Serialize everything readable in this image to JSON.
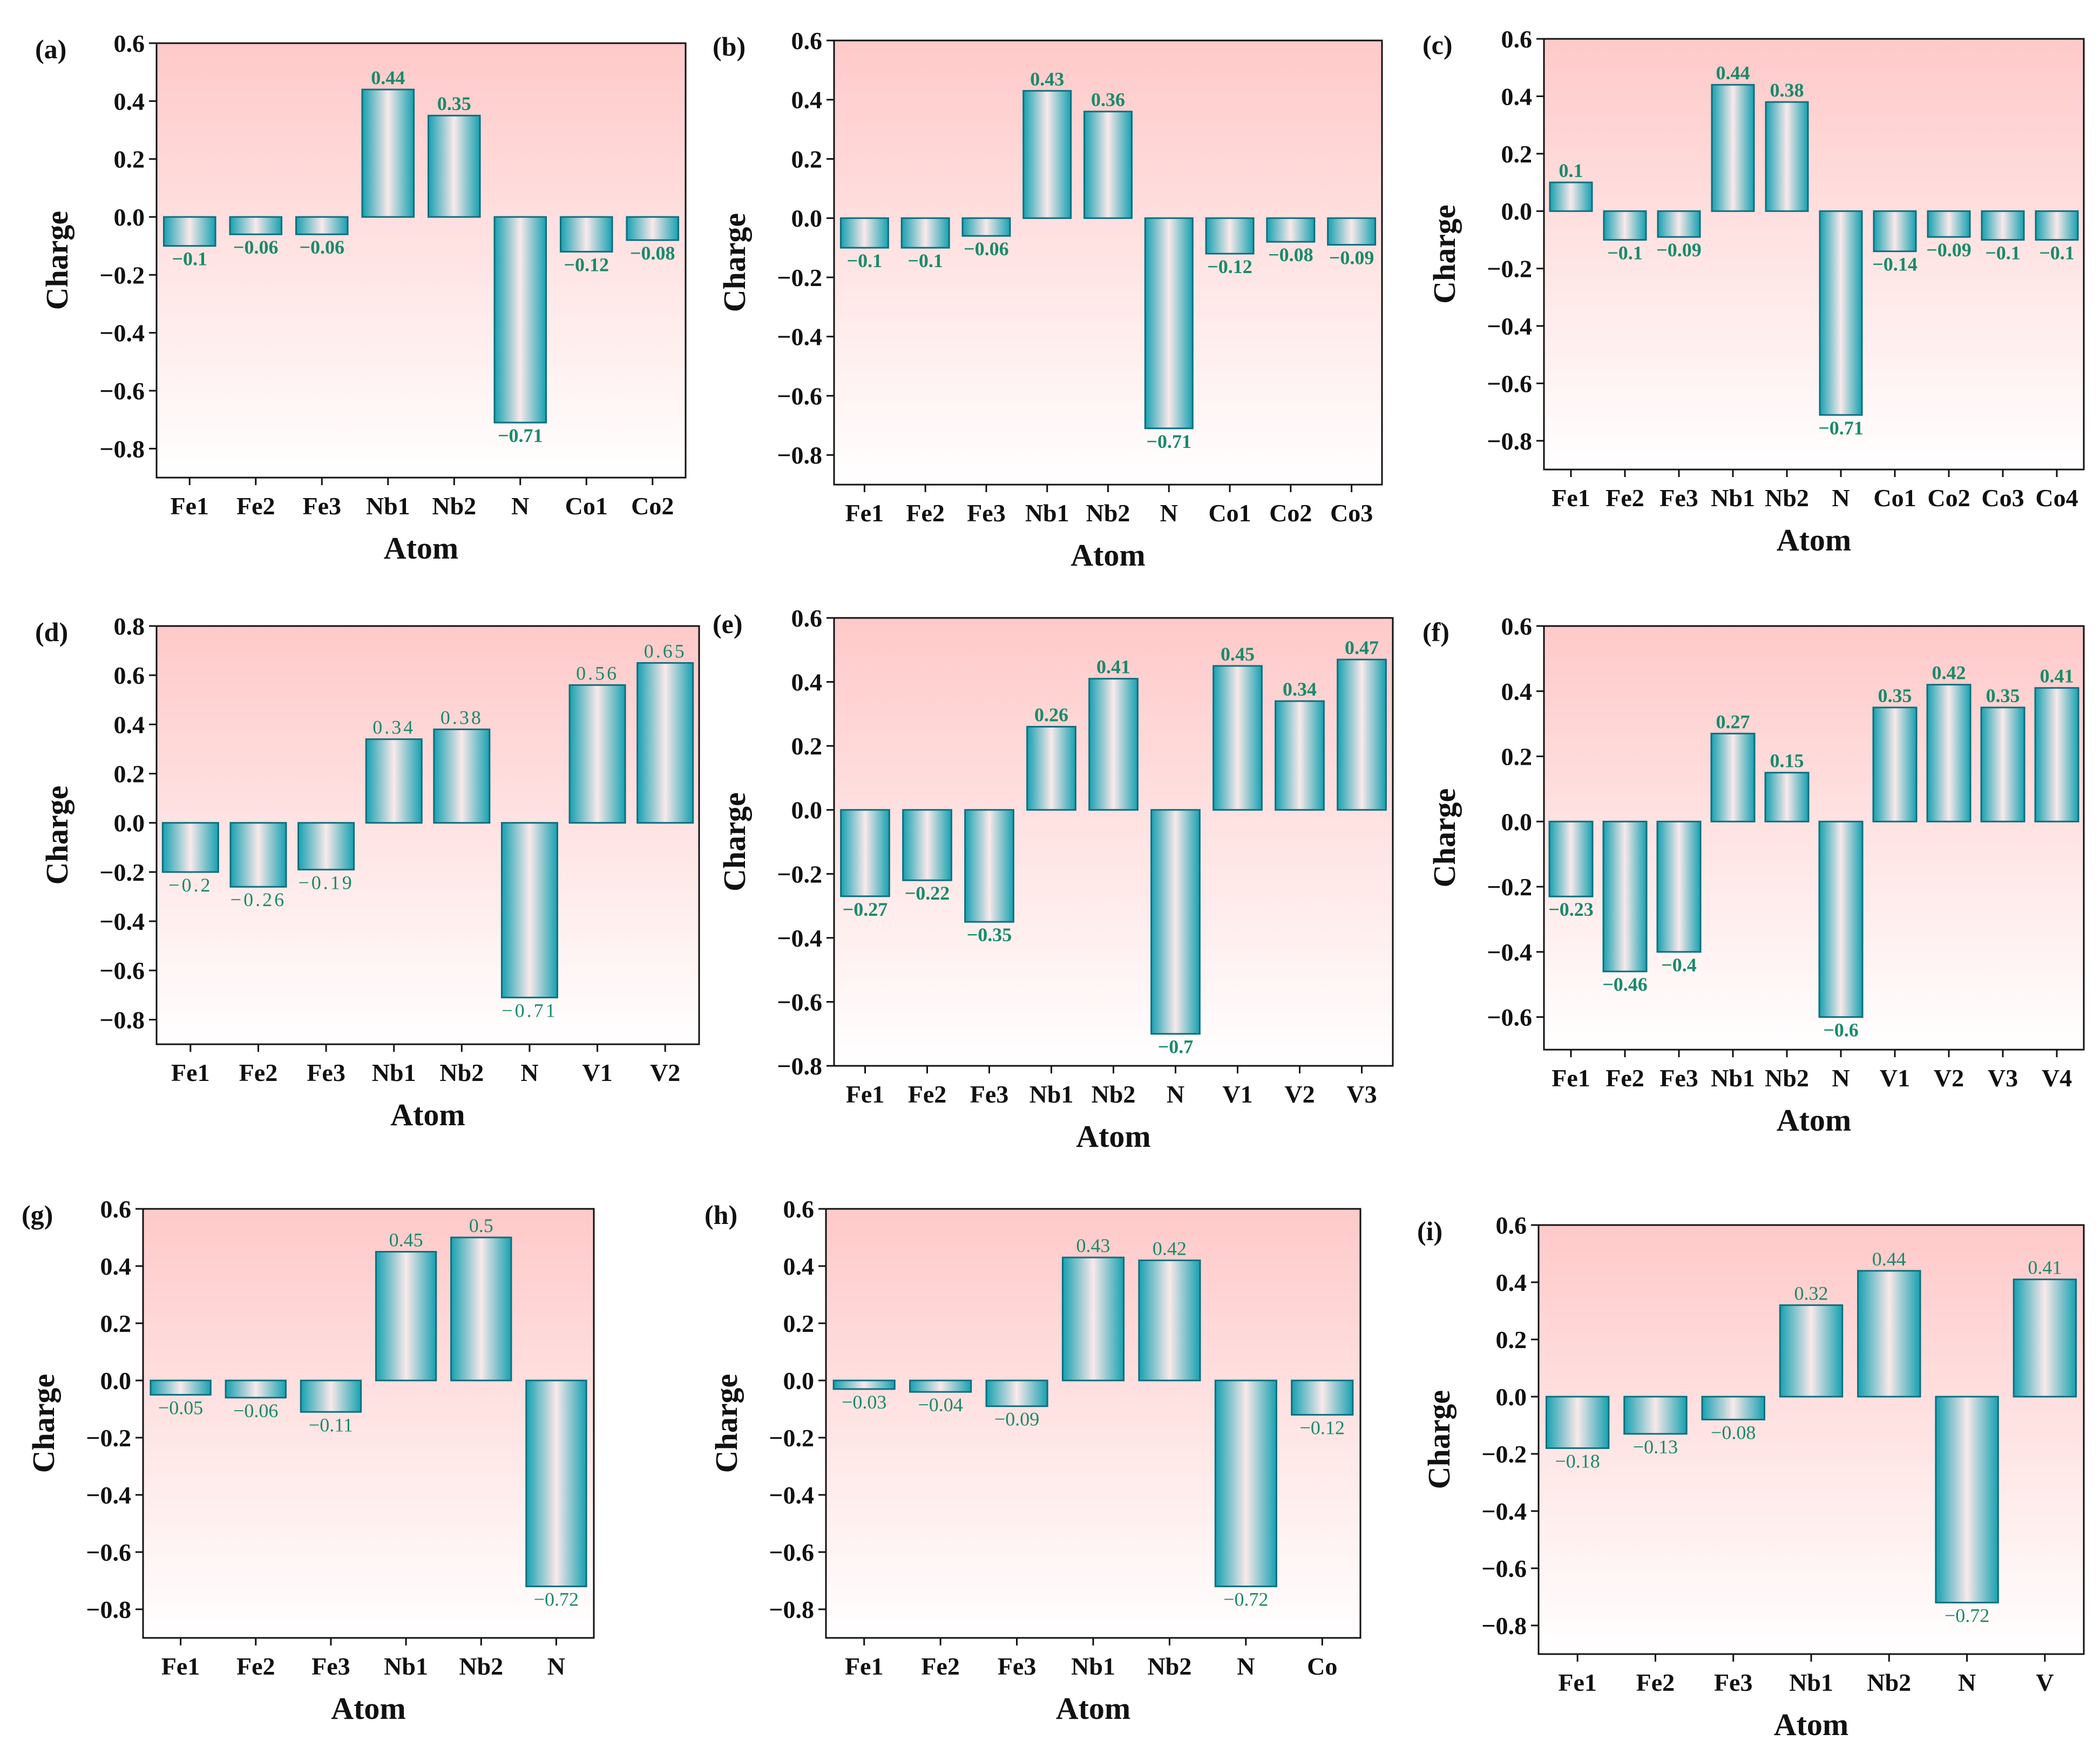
{
  "colors": {
    "bar_edge": "#0e6f7d",
    "bar_dark": "#17a1b1",
    "bar_light": "#fae9ea",
    "bg_top": "#ffc9c9",
    "bg_bottom": "#ffffff",
    "label_green": "#1a8a6a"
  },
  "chart_data": [
    {
      "type": "bar",
      "panel_label": "(a)",
      "xlabel": "Atom",
      "ylabel": "Charge",
      "ylim": [
        -0.9,
        0.6
      ],
      "yticks": [
        "0.6",
        "0.4",
        "0.2",
        "0.0",
        "-0.2",
        "-0.4",
        "-0.6",
        "-0.8"
      ],
      "categories": [
        "Fe1",
        "Fe2",
        "Fe3",
        "Nb1",
        "Nb2",
        "N",
        "Co1",
        "Co2"
      ],
      "values": [
        -0.1,
        -0.06,
        -0.06,
        0.44,
        0.35,
        -0.71,
        -0.12,
        -0.08
      ],
      "value_labels": [
        "-0.1",
        "-0.06",
        "-0.06",
        "0.44",
        "0.35",
        "-0.71",
        "-0.12",
        "-0.08"
      ]
    },
    {
      "type": "bar",
      "panel_label": "(b)",
      "xlabel": "Atom",
      "ylabel": "Charge",
      "ylim": [
        -0.9,
        0.6
      ],
      "yticks": [
        "0.6",
        "0.4",
        "0.2",
        "0.0",
        "-0.2",
        "-0.4",
        "-0.6",
        "-0.8"
      ],
      "categories": [
        "Fe1",
        "Fe2",
        "Fe3",
        "Nb1",
        "Nb2",
        "N",
        "Co1",
        "Co2",
        "Co3"
      ],
      "values": [
        -0.1,
        -0.1,
        -0.06,
        0.43,
        0.36,
        -0.71,
        -0.12,
        -0.08,
        -0.09
      ],
      "value_labels": [
        "-0.1",
        "-0.1",
        "-0.06",
        "0.43",
        "0.36",
        "-0.71",
        "-0.12",
        "-0.08",
        "-0.09"
      ]
    },
    {
      "type": "bar",
      "panel_label": "(c)",
      "xlabel": "Atom",
      "ylabel": "Charge",
      "ylim": [
        -0.9,
        0.6
      ],
      "yticks": [
        "0.6",
        "0.4",
        "0.2",
        "0.0",
        "-0.2",
        "-0.4",
        "-0.6",
        "-0.8"
      ],
      "categories": [
        "Fe1",
        "Fe2",
        "Fe3",
        "Nb1",
        "Nb2",
        "N",
        "Co1",
        "Co2",
        "Co3",
        "Co4"
      ],
      "values": [
        0.1,
        -0.1,
        -0.09,
        0.44,
        0.38,
        -0.71,
        -0.14,
        -0.09,
        -0.1,
        -0.1
      ],
      "value_labels": [
        "0.1",
        "-0.1",
        "-0.09",
        "0.44",
        "0.38",
        "-0.71",
        "-0.14",
        "-0.09",
        "-0.1",
        "-0.1"
      ]
    },
    {
      "type": "bar",
      "panel_label": "(d)",
      "xlabel": "Atom",
      "ylabel": "Charge",
      "ylim": [
        -0.9,
        0.8
      ],
      "yticks": [
        "0.8",
        "0.6",
        "0.4",
        "0.2",
        "0.0",
        "-0.2",
        "-0.4",
        "-0.6",
        "-0.8"
      ],
      "categories": [
        "Fe1",
        "Fe2",
        "Fe3",
        "Nb1",
        "Nb2",
        "N",
        "V1",
        "V2"
      ],
      "values": [
        -0.2,
        -0.26,
        -0.19,
        0.34,
        0.38,
        -0.71,
        0.56,
        0.65
      ],
      "value_labels": [
        "-0.2",
        "-0.26",
        "-0.19",
        "0.34",
        "0.38",
        "-0.71",
        "0.56",
        "0.65"
      ]
    },
    {
      "type": "bar",
      "panel_label": "(e)",
      "xlabel": "Atom",
      "ylabel": "Charge",
      "ylim": [
        -0.8,
        0.6
      ],
      "yticks": [
        "0.6",
        "0.4",
        "0.2",
        "0.0",
        "-0.2",
        "-0.4",
        "-0.6",
        "-0.8"
      ],
      "categories": [
        "Fe1",
        "Fe2",
        "Fe3",
        "Nb1",
        "Nb2",
        "N",
        "V1",
        "V2",
        "V3"
      ],
      "values": [
        -0.27,
        -0.22,
        -0.35,
        0.26,
        0.41,
        -0.7,
        0.45,
        0.34,
        0.47
      ],
      "value_labels": [
        "-0.27",
        "-0.22",
        "-0.35",
        "0.26",
        "0.41",
        "-0.7",
        "0.45",
        "0.34",
        "0.47"
      ]
    },
    {
      "type": "bar",
      "panel_label": "(f)",
      "xlabel": "Atom",
      "ylabel": "Charge",
      "ylim": [
        -0.7,
        0.6
      ],
      "yticks": [
        "0.6",
        "0.4",
        "0.2",
        "0.0",
        "-0.2",
        "-0.4",
        "-0.6"
      ],
      "categories": [
        "Fe1",
        "Fe2",
        "Fe3",
        "Nb1",
        "Nb2",
        "N",
        "V1",
        "V2",
        "V3",
        "V4"
      ],
      "values": [
        -0.23,
        -0.46,
        -0.4,
        0.27,
        0.15,
        -0.6,
        0.35,
        0.42,
        0.35,
        0.41
      ],
      "value_labels": [
        "-0.23",
        "-0.46",
        "-0.4",
        "0.27",
        "0.15",
        "-0.6",
        "0.35",
        "0.42",
        "0.35",
        "0.41"
      ]
    },
    {
      "type": "bar",
      "panel_label": "(g)",
      "xlabel": "Atom",
      "ylabel": "Charge",
      "ylim": [
        -0.9,
        0.6
      ],
      "yticks": [
        "0.6",
        "0.4",
        "0.2",
        "0.0",
        "-0.2",
        "-0.4",
        "-0.6",
        "-0.8"
      ],
      "categories": [
        "Fe1",
        "Fe2",
        "Fe3",
        "Nb1",
        "Nb2",
        "N"
      ],
      "values": [
        -0.05,
        -0.06,
        -0.11,
        0.45,
        0.5,
        -0.72
      ],
      "value_labels": [
        "-0.05",
        "-0.06",
        "-0.11",
        "0.45",
        "0.5",
        "-0.72"
      ]
    },
    {
      "type": "bar",
      "panel_label": "(h)",
      "xlabel": "Atom",
      "ylabel": "Charge",
      "ylim": [
        -0.9,
        0.6
      ],
      "yticks": [
        "0.6",
        "0.4",
        "0.2",
        "0.0",
        "-0.2",
        "-0.4",
        "-0.6",
        "-0.8"
      ],
      "categories": [
        "Fe1",
        "Fe2",
        "Fe3",
        "Nb1",
        "Nb2",
        "N",
        "Co"
      ],
      "values": [
        -0.03,
        -0.04,
        -0.09,
        0.43,
        0.42,
        -0.72,
        -0.12
      ],
      "value_labels": [
        "-0.03",
        "-0.04",
        "-0.09",
        "0.43",
        "0.42",
        "-0.72",
        "-0.12"
      ]
    },
    {
      "type": "bar",
      "panel_label": "(i)",
      "xlabel": "Atom",
      "ylabel": "Charge",
      "ylim": [
        -0.9,
        0.6
      ],
      "yticks": [
        "0.6",
        "0.4",
        "0.2",
        "0.0",
        "-0.2",
        "-0.4",
        "-0.6",
        "-0.8"
      ],
      "categories": [
        "Fe1",
        "Fe2",
        "Fe3",
        "Nb1",
        "Nb2",
        "N",
        "V"
      ],
      "values": [
        -0.18,
        -0.13,
        -0.08,
        0.32,
        0.44,
        -0.72,
        0.41
      ],
      "value_labels": [
        "-0.18",
        "-0.13",
        "-0.08",
        "0.32",
        "0.44",
        "-0.72",
        "0.41"
      ]
    }
  ]
}
